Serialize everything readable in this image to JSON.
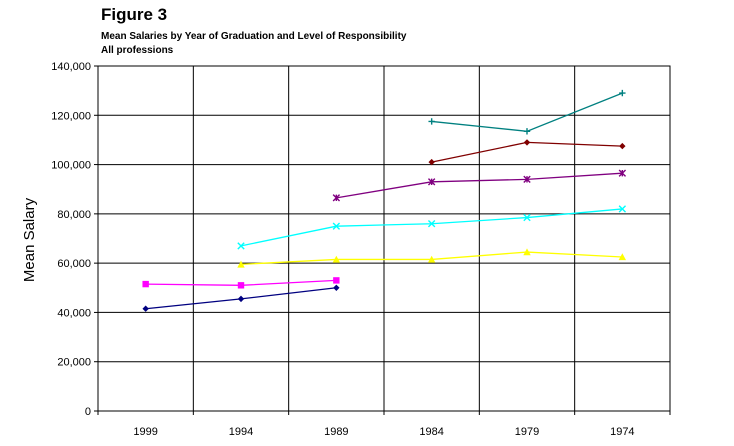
{
  "figure": {
    "title": "Figure 3",
    "subtitle": "Mean Salaries by Year of Graduation and Level of Responsibility",
    "subtitle2": "All professions"
  },
  "chart_data": {
    "type": "line",
    "ylabel": "Mean Salary",
    "xlabel": "",
    "categories": [
      "1999",
      "1994",
      "1989",
      "1984",
      "1979",
      "1974"
    ],
    "ylim": [
      0,
      140000
    ],
    "ytick_values": [
      0,
      20000,
      40000,
      60000,
      80000,
      100000,
      120000,
      140000
    ],
    "ytick_labels": [
      "0",
      "20,000",
      "40,000",
      "60,000",
      "80,000",
      "100,000",
      "120,000",
      "140,000"
    ],
    "grid": true,
    "legend": "none",
    "series": [
      {
        "color": "#000080",
        "marker": "diamond",
        "values": [
          41500,
          45500,
          50000,
          null,
          null,
          null
        ]
      },
      {
        "color": "#ff00ff",
        "marker": "square",
        "values": [
          51500,
          51000,
          53000,
          null,
          null,
          null
        ]
      },
      {
        "color": "#ffff00",
        "marker": "triangle",
        "values": [
          null,
          59500,
          61500,
          61500,
          64500,
          62500
        ]
      },
      {
        "color": "#00ffff",
        "marker": "x",
        "values": [
          null,
          67000,
          75000,
          76000,
          78500,
          82000
        ]
      },
      {
        "color": "#800080",
        "marker": "star",
        "values": [
          null,
          null,
          86500,
          93000,
          94000,
          96500
        ]
      },
      {
        "color": "#800000",
        "marker": "circle",
        "values": [
          null,
          null,
          null,
          101000,
          109000,
          107500
        ]
      },
      {
        "color": "#008080",
        "marker": "plus",
        "values": [
          null,
          null,
          null,
          117500,
          113500,
          129000
        ]
      }
    ]
  }
}
